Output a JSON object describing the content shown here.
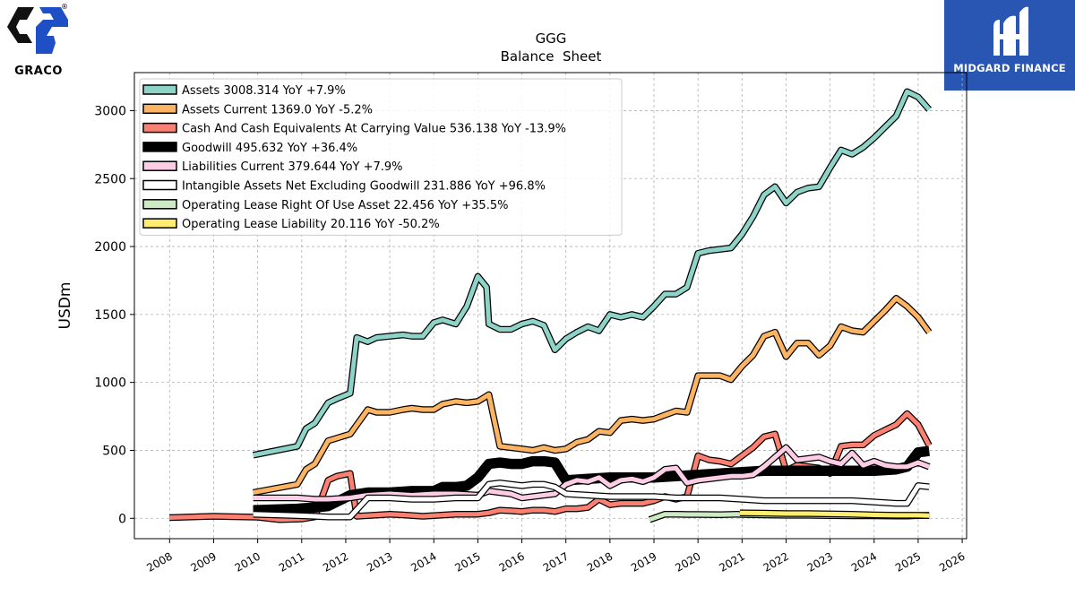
{
  "brand": {
    "company_logo_text": "GRACO",
    "sponsor_logo_text": "MIDGARD FINANCE"
  },
  "chart_data": {
    "type": "line",
    "title": "GGG",
    "subtitle": "Balance  Sheet",
    "xlabel": "",
    "ylabel": "USDm",
    "xlim": [
      2007.2,
      2026.1
    ],
    "ylim": [
      -150,
      3280
    ],
    "x_ticks": [
      "2008",
      "2009",
      "2010",
      "2011",
      "2012",
      "2013",
      "2014",
      "2015",
      "2016",
      "2017",
      "2018",
      "2019",
      "2020",
      "2021",
      "2022",
      "2023",
      "2024",
      "2025",
      "2026"
    ],
    "y_ticks": [
      0,
      500,
      1000,
      1500,
      2000,
      2500,
      3000
    ],
    "grid": true,
    "legend_position": "top-left",
    "series": [
      {
        "name": "Assets  3008.314 YoY +7.9%",
        "color": "#8dd3c7",
        "width": 5,
        "x": [
          2009.9,
          2010.9,
          2011.1,
          2011.3,
          2011.6,
          2011.8,
          2012.1,
          2012.25,
          2012.5,
          2012.7,
          2013.0,
          2013.3,
          2013.5,
          2013.75,
          2014.0,
          2014.2,
          2014.5,
          2014.75,
          2015.0,
          2015.2,
          2015.25,
          2015.5,
          2015.75,
          2016.0,
          2016.25,
          2016.5,
          2016.75,
          2017.0,
          2017.25,
          2017.5,
          2017.75,
          2018.0,
          2018.25,
          2018.5,
          2018.75,
          2019.0,
          2019.25,
          2019.5,
          2019.75,
          2020.0,
          2020.25,
          2020.5,
          2020.75,
          2021.0,
          2021.25,
          2021.5,
          2021.75,
          2022.0,
          2022.25,
          2022.5,
          2022.75,
          2023.0,
          2023.25,
          2023.5,
          2023.75,
          2024.0,
          2024.25,
          2024.5,
          2024.75,
          2025.0,
          2025.25
        ],
        "y": [
          465,
          530,
          660,
          700,
          850,
          880,
          920,
          1330,
          1300,
          1330,
          1340,
          1350,
          1340,
          1340,
          1440,
          1460,
          1430,
          1560,
          1780,
          1700,
          1430,
          1390,
          1390,
          1430,
          1450,
          1420,
          1240,
          1320,
          1370,
          1410,
          1380,
          1500,
          1480,
          1500,
          1480,
          1560,
          1650,
          1650,
          1700,
          1950,
          1970,
          1980,
          1990,
          2090,
          2220,
          2380,
          2440,
          2320,
          2400,
          2430,
          2440,
          2580,
          2710,
          2680,
          2730,
          2800,
          2880,
          2960,
          3140,
          3100,
          3008
        ]
      },
      {
        "name": "Assets Current  1369.0 YoY -5.2%",
        "color": "#fdb462",
        "width": 5,
        "x": [
          2009.9,
          2010.9,
          2011.1,
          2011.3,
          2011.6,
          2011.8,
          2012.1,
          2012.5,
          2012.7,
          2013.0,
          2013.3,
          2013.5,
          2013.75,
          2014.0,
          2014.2,
          2014.5,
          2014.75,
          2015.0,
          2015.25,
          2015.5,
          2015.75,
          2016.0,
          2016.25,
          2016.5,
          2016.75,
          2017.0,
          2017.25,
          2017.5,
          2017.75,
          2018.0,
          2018.25,
          2018.5,
          2018.75,
          2019.0,
          2019.25,
          2019.5,
          2019.75,
          2020.0,
          2020.25,
          2020.5,
          2020.75,
          2021.0,
          2021.25,
          2021.5,
          2021.75,
          2022.0,
          2022.25,
          2022.5,
          2022.75,
          2023.0,
          2023.25,
          2023.5,
          2023.75,
          2024.0,
          2024.25,
          2024.5,
          2024.75,
          2025.0,
          2025.25
        ],
        "y": [
          190,
          250,
          360,
          400,
          570,
          590,
          620,
          800,
          780,
          780,
          800,
          810,
          800,
          800,
          840,
          860,
          850,
          860,
          910,
          530,
          520,
          510,
          500,
          520,
          500,
          510,
          560,
          580,
          640,
          630,
          720,
          730,
          720,
          730,
          760,
          790,
          780,
          1050,
          1050,
          1050,
          1020,
          1120,
          1200,
          1340,
          1370,
          1190,
          1290,
          1290,
          1200,
          1270,
          1410,
          1380,
          1370,
          1450,
          1530,
          1620,
          1560,
          1480,
          1369
        ]
      },
      {
        "name": "Cash And Cash Equivalents At Carrying Value  536.138 YoY -13.9%",
        "color": "#fb8072",
        "width": 5,
        "x": [
          2008.0,
          2009.0,
          2010.0,
          2010.5,
          2011.0,
          2011.3,
          2011.6,
          2011.8,
          2012.1,
          2012.25,
          2012.5,
          2013.0,
          2013.3,
          2013.75,
          2014.0,
          2014.5,
          2014.75,
          2015.0,
          2015.25,
          2015.5,
          2015.75,
          2016.0,
          2016.25,
          2016.5,
          2016.75,
          2017.0,
          2017.25,
          2017.5,
          2017.75,
          2018.0,
          2018.25,
          2018.5,
          2018.75,
          2019.0,
          2019.25,
          2019.5,
          2019.75,
          2020.0,
          2020.25,
          2020.5,
          2020.75,
          2021.0,
          2021.25,
          2021.5,
          2021.75,
          2022.0,
          2022.25,
          2022.5,
          2022.75,
          2023.0,
          2023.25,
          2023.5,
          2023.75,
          2024.0,
          2024.25,
          2024.5,
          2024.75,
          2025.0,
          2025.25
        ],
        "y": [
          5,
          15,
          8,
          -10,
          -5,
          10,
          280,
          310,
          330,
          15,
          20,
          30,
          25,
          15,
          20,
          30,
          30,
          30,
          40,
          60,
          55,
          50,
          60,
          60,
          50,
          70,
          70,
          80,
          140,
          100,
          110,
          110,
          110,
          130,
          160,
          140,
          160,
          460,
          430,
          420,
          400,
          460,
          520,
          600,
          620,
          350,
          390,
          380,
          370,
          330,
          530,
          540,
          540,
          610,
          650,
          690,
          770,
          690,
          536
        ]
      },
      {
        "name": "Goodwill  495.632 YoY +36.4%",
        "color": "#000000",
        "width": 9,
        "x": [
          2009.9,
          2010.9,
          2011.3,
          2011.6,
          2012.1,
          2012.5,
          2013.0,
          2013.5,
          2014.0,
          2014.2,
          2014.5,
          2014.75,
          2015.0,
          2015.25,
          2015.5,
          2015.75,
          2016.0,
          2016.25,
          2016.5,
          2016.75,
          2017.0,
          2017.5,
          2018.0,
          2018.5,
          2019.0,
          2019.5,
          2020.0,
          2020.5,
          2021.0,
          2021.5,
          2022.0,
          2022.5,
          2023.0,
          2023.5,
          2024.0,
          2024.5,
          2024.75,
          2025.0,
          2025.25
        ],
        "y": [
          60,
          70,
          80,
          90,
          170,
          190,
          190,
          200,
          200,
          230,
          230,
          240,
          300,
          400,
          410,
          400,
          400,
          420,
          420,
          410,
          280,
          290,
          300,
          300,
          300,
          310,
          320,
          330,
          340,
          350,
          350,
          350,
          350,
          350,
          350,
          360,
          380,
          485,
          495
        ]
      },
      {
        "name": "Liabilities Current  379.644 YoY +7.9%",
        "color": "#fccde5",
        "width": 5,
        "x": [
          2009.9,
          2010.9,
          2011.3,
          2011.6,
          2012.1,
          2012.5,
          2013.0,
          2013.5,
          2014.0,
          2014.5,
          2015.0,
          2015.25,
          2015.5,
          2015.75,
          2016.0,
          2016.25,
          2016.5,
          2016.75,
          2017.0,
          2017.25,
          2017.5,
          2017.75,
          2018.0,
          2018.25,
          2018.5,
          2018.75,
          2019.0,
          2019.25,
          2019.5,
          2019.75,
          2020.0,
          2020.25,
          2020.5,
          2020.75,
          2021.0,
          2021.25,
          2021.5,
          2021.75,
          2022.0,
          2022.25,
          2022.5,
          2022.75,
          2023.0,
          2023.25,
          2023.5,
          2023.75,
          2024.0,
          2024.25,
          2024.5,
          2024.75,
          2025.0,
          2025.25
        ],
        "y": [
          150,
          150,
          140,
          140,
          150,
          170,
          180,
          170,
          180,
          180,
          170,
          200,
          190,
          180,
          150,
          160,
          170,
          180,
          250,
          280,
          270,
          300,
          240,
          280,
          290,
          270,
          300,
          360,
          370,
          260,
          280,
          290,
          300,
          310,
          310,
          320,
          380,
          450,
          520,
          430,
          440,
          450,
          420,
          400,
          480,
          390,
          420,
          390,
          380,
          380,
          410,
          380
        ]
      },
      {
        "name": "Intangible Assets Net Excluding Goodwill  231.886 YoY +96.8%",
        "color": "#ffffff",
        "width": 5,
        "x": [
          2009.9,
          2010.9,
          2011.3,
          2011.6,
          2012.1,
          2012.5,
          2013.0,
          2013.5,
          2014.0,
          2014.5,
          2015.0,
          2015.25,
          2015.5,
          2015.75,
          2016.0,
          2016.25,
          2016.5,
          2016.75,
          2017.0,
          2017.5,
          2018.0,
          2018.5,
          2019.0,
          2019.5,
          2020.0,
          2020.5,
          2021.0,
          2021.5,
          2022.0,
          2022.5,
          2023.0,
          2023.5,
          2024.0,
          2024.5,
          2024.75,
          2025.0,
          2025.25
        ],
        "y": [
          30,
          20,
          15,
          10,
          10,
          150,
          150,
          140,
          140,
          150,
          150,
          250,
          260,
          250,
          240,
          250,
          250,
          230,
          180,
          170,
          160,
          160,
          160,
          150,
          150,
          150,
          140,
          130,
          130,
          130,
          130,
          130,
          120,
          110,
          110,
          240,
          232
        ]
      },
      {
        "name": "Operating Lease Right Of Use Asset  22.456 YoY +35.5%",
        "color": "#ccebc5",
        "width": 5,
        "x": [
          2018.9,
          2019.25,
          2019.5,
          2019.75,
          2020.0,
          2020.5,
          2020.9,
          2020.95,
          2021.0,
          2021.5,
          2022.0,
          2022.5,
          2023.0,
          2023.5,
          2024.0,
          2024.5,
          2024.75,
          2025.0,
          2025.25
        ],
        "y": [
          -10,
          30,
          30,
          28,
          28,
          27,
          30,
          28,
          28,
          25,
          22,
          22,
          20,
          18,
          18,
          16,
          16,
          20,
          22
        ]
      },
      {
        "name": "Operating Lease Liability  20.116 YoY -50.2%",
        "color": "#ffed6f",
        "width": 5,
        "x": [
          2020.95,
          2021.0,
          2021.5,
          2022.0,
          2022.5,
          2023.0,
          2023.5,
          2024.0,
          2024.5,
          2025.0,
          2025.25
        ],
        "y": [
          40,
          40,
          38,
          35,
          35,
          32,
          30,
          25,
          22,
          22,
          20
        ]
      }
    ]
  }
}
